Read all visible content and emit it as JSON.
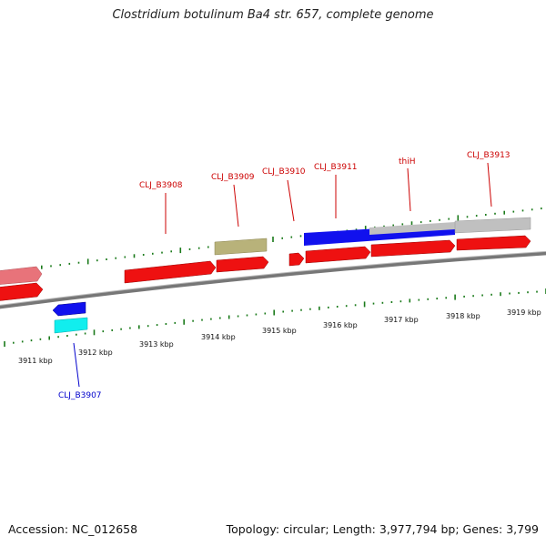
{
  "title": "Clostridium botulinum Ba4 str. 657, complete genome",
  "accession": "Accession: NC_012658",
  "summary": "Topology: circular; Length: 3,977,794 bp; Genes: 3,799",
  "kbp_labels": [
    "3911 kbp",
    "3912 kbp",
    "3913 kbp",
    "3914 kbp",
    "3915 kbp",
    "3916 kbp",
    "3917 kbp",
    "3918 kbp",
    "3919 kbp"
  ],
  "gene_labels": [
    "CLJ_B3907",
    "CLJ_B3908",
    "CLJ_B3909",
    "CLJ_B3910",
    "CLJ_B3911",
    "thiH",
    "CLJ_B3913"
  ],
  "colors": {
    "cds_forward": "#ee1111",
    "cds_reverse_light": "#e8737a",
    "blue": "#1111ee",
    "cyan": "#11eeee",
    "olive": "#b8b27a",
    "grey": "#c0c0c0",
    "tick": "#1a7a1a",
    "label_red": "#cc0000",
    "label_blue": "#0000cc",
    "backbone": "#888888"
  }
}
